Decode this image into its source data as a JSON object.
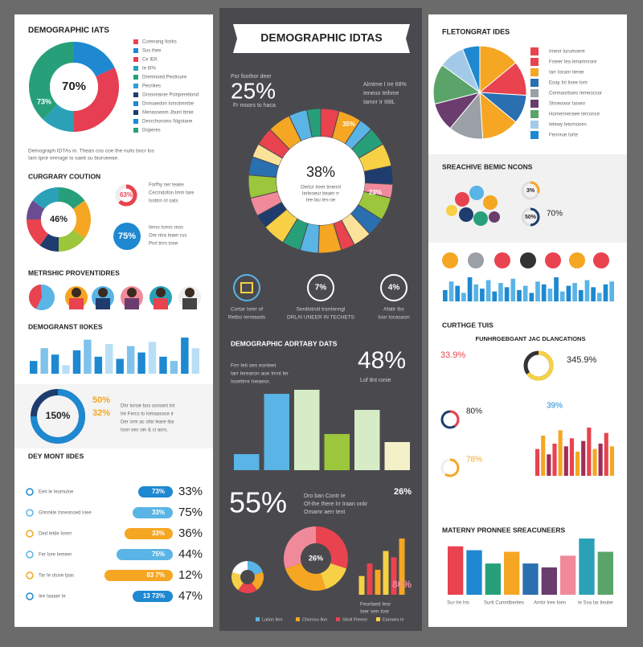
{
  "left": {
    "title": "DEMOGRAPHIC IATS",
    "donut": {
      "values": [
        18,
        32,
        12,
        38
      ],
      "colors": [
        "#1e88d0",
        "#e63e52",
        "#2aa1b7",
        "#27a07a"
      ],
      "center": "70%",
      "label": "73%"
    },
    "legend": {
      "labels": [
        "Curenang Itorks",
        "Sus ihee",
        "Ce IEK",
        "Ie 6I%",
        "Dremnoed Peotioure",
        "Pecrikes",
        "Grosnearoe Pcinperetiond",
        "Dnnsaedon Iomotmmbe",
        "Menasseem Jbunt ttmie",
        "Desrchsnoms Nigotane",
        "Doperes"
      ],
      "colors": [
        "#e8434e",
        "#1e88d0",
        "#e63e52",
        "#2aa1b7",
        "#27a07a",
        "#2f9fd6",
        "#1e3c6e",
        "#1e88d0",
        "#1e3c6e",
        "#1e88d0",
        "#27a07a"
      ]
    },
    "note": [
      "Demograph IDTAs in. Thean cos coe the nulis bocr los",
      "Iam tpnir ererage lo saeit su bioroeeae."
    ],
    "section2": "CURGRARY COUTION",
    "donut2": {
      "values": [
        15,
        20,
        15,
        10,
        15,
        10,
        15
      ],
      "colors": [
        "#27a07a",
        "#f5a623",
        "#9cc63b",
        "#1e3c6e",
        "#e8434e",
        "#6a4c93",
        "#2aa1b7"
      ],
      "center": "46%"
    },
    "stat1": {
      "label": "63%",
      "value": 63,
      "text": [
        "Forfhy ner teake",
        "Cecrndofon Imm tare",
        "Isnttrn rrl oats"
      ]
    },
    "stat2": {
      "label": "75%",
      "text": [
        "Ierno lsmrs reos",
        "Ore ntra Ieaer rus",
        "Pnrl trrrs tone"
      ]
    },
    "section3": "METRSHIC PROVENTIDRES",
    "section4": "DEMOGRANST IIOKES",
    "bars": {
      "values": [
        30,
        60,
        45,
        20,
        55,
        80,
        40,
        70,
        35,
        65,
        50,
        75,
        40,
        30,
        85,
        60
      ],
      "colors": [
        "#1e88d0",
        "#7fc3ec",
        "#1e88d0",
        "#b8dff5"
      ]
    },
    "ring": {
      "value": 75,
      "label": "150%",
      "a": "50%",
      "b": "32%",
      "text": [
        "Dhr Iorsie bos ocroont tnt",
        "Ire Fercs lo Iomaasoce ir",
        "Der orm ac ofar leare iba",
        "Iosn oec oin & ci aors."
      ]
    },
    "section5": "DEY MONT IIDES",
    "rows": [
      {
        "label": "Eeir le Ieumuloe",
        "tag": "73%",
        "big": "33%",
        "value": 43,
        "color": "#1e88d0"
      },
      {
        "label": "Ghnnkle Inneonoed Ioee",
        "tag": "33%",
        "big": "75%",
        "value": 50,
        "color": "#5ab4e5"
      },
      {
        "label": "Ded Ielde Iomrr",
        "tag": "33%",
        "big": "36%",
        "value": 60,
        "color": "#f5a623"
      },
      {
        "label": "Fer Iore Iemeer",
        "tag": "75%",
        "big": "44%",
        "value": 70,
        "color": "#5ab4e5"
      },
      {
        "label": "Tar Ie otuse lpas",
        "tag": "83 7%",
        "big": "12%",
        "value": 85,
        "color": "#f5a623"
      },
      {
        "label": "Iire Iaaaer Ie",
        "tag": "13 73%",
        "big": "47%",
        "value": 50,
        "color": "#1e88d0"
      }
    ]
  },
  "middle": {
    "banner": "DEMOGRAPHIC IDTAS",
    "big1": "25%",
    "big1_text": [
      "Por foothor deer",
      "Fr moors to haca"
    ],
    "side_text": [
      "Almtme I Ire 68%",
      "Ieneuo Ieihme",
      "Iamnr Ir I88L"
    ],
    "donut": {
      "values": [
        4,
        5,
        3,
        4,
        5,
        4,
        3,
        5,
        4,
        4,
        3,
        5,
        4,
        4,
        5,
        3,
        4,
        5,
        4,
        3,
        4,
        5,
        4,
        3
      ],
      "colors": [
        "#e8434e",
        "#f5a623",
        "#5ab4e5",
        "#27a07a",
        "#f7d046",
        "#1e3c6e",
        "#f08a9b",
        "#9cc63b",
        "#2a6fb0",
        "#fbe29a"
      ],
      "center": "38%",
      "text": [
        "Oerlur Ireer tinennl",
        "Ierleoeur beaer rr",
        "Iee lau Ies-oe"
      ],
      "label1": "35%",
      "label2": "23%"
    },
    "icons": [
      {
        "label": "7%"
      },
      {
        "label": "4%"
      }
    ],
    "captions": [
      [
        "Cortar Isrer of",
        "Retbo Ierntaods"
      ],
      [
        "Serdlotrotl trarrlenngl",
        "DRLAI UNEER IN TECHETS"
      ],
      [
        "Afatir Ibs",
        "Ioor Iocasaon"
      ]
    ],
    "section": "DEMOGRAPHIC ADRTABY DATS",
    "big2": "48%",
    "big2_text": "Lof tlnt ronie",
    "text2": [
      "Frrr Ieti oes eonleet",
      "Iarr Ierearon aoe Imnt ler",
      "Isoettrre Ineaeor."
    ],
    "bars": {
      "values": [
        20,
        95,
        100,
        45,
        75,
        35
      ],
      "colors": [
        "#5ab4e5",
        "#5ab4e5",
        "#d6ecc6",
        "#9cc63b",
        "#d6ecc6",
        "#f4f0c8"
      ]
    },
    "big3": "55%",
    "big3_text": [
      "Dro ban Contr Ie",
      "Of-the Ihere Irr Iraan onkr",
      "Omamr aerr tent"
    ],
    "big4": "26%",
    "donut3": {
      "values": [
        30,
        15,
        25,
        30
      ],
      "colors": [
        "#e8434e",
        "#f7d046",
        "#f5a623",
        "#f08a9b"
      ],
      "center": "26%"
    },
    "donut4": {
      "values": [
        20,
        20,
        20,
        20,
        20
      ],
      "colors": [
        "#5ab4e5",
        "#f5a623",
        "#e8434e",
        "#f7d046",
        "#ffffff"
      ]
    },
    "bars2": {
      "values": [
        30,
        50,
        40,
        70,
        60,
        90
      ],
      "colors": [
        "#f7d046",
        "#e8434e",
        "#f5a623"
      ]
    },
    "big5": "80%",
    "big5_text": [
      "Feorlaed Iesr",
      "Ioer sen Iosr"
    ],
    "footer": [
      "Lation Ilen",
      "Chornsu Ilon",
      "Stiotl Fhenor",
      "Earnaes Ie"
    ]
  },
  "right": {
    "title": "FLETONGRAT IDES",
    "pie": {
      "values": [
        14,
        12,
        10,
        13,
        12,
        10,
        14,
        9,
        6
      ],
      "colors": [
        "#f5a623",
        "#e8434e",
        "#2a6fb0",
        "#f5a623",
        "#9aa0a6",
        "#6a3d6e",
        "#5aa469",
        "#a3c9e8",
        "#1e88d0"
      ]
    },
    "legend": {
      "labels": [
        "Irneor Iurumoere",
        "Fsteer Iea Ienamnrore",
        "Iarr Iocanr tiener",
        "Eoay Inl Iisee Iom",
        "Cermaorboes Iemeocsor",
        "Shneowor Iarwnr",
        "Hornenneraee Ierconce",
        "Ielewy Ieiornooes",
        "Fennrue Iorte"
      ],
      "colors": [
        "#e8434e",
        "#e8434e",
        "#f5a623",
        "#2a6fb0",
        "#9aa0a6",
        "#6a3d6e",
        "#5aa469",
        "#a3c9e8",
        "#1e88d0"
      ]
    },
    "section": "SREACHIVE BEMIC NCONS",
    "r1": "3%",
    "r2": "50%",
    "r3": "70%",
    "bars": {
      "values": [
        40,
        70,
        55,
        30,
        85,
        60,
        45,
        75,
        35,
        65,
        50,
        80,
        40,
        55,
        30,
        70,
        60,
        45,
        85,
        35,
        55,
        65,
        40,
        75,
        50,
        30,
        60,
        70
      ],
      "colors": [
        "#1e88d0",
        "#5ab4e5"
      ]
    },
    "section2": "CURTHGE TUIS",
    "subtitle": "FUNHRGEBGANT JAC DLANCATIONS",
    "s1": "33.9%",
    "s2": "345.9%",
    "s3": "80%",
    "s4": "39%",
    "s5": "78%",
    "bars2": {
      "values": [
        50,
        75,
        40,
        60,
        85,
        55,
        70,
        45,
        65,
        90,
        50,
        60,
        80,
        55
      ],
      "colors": [
        "#e8434e",
        "#f5a623",
        "#a12d55"
      ]
    },
    "section3": "MATERNY PRONNEE SREACUNEERS",
    "bars3": {
      "values": [
        62,
        57,
        40,
        55,
        40,
        35,
        50,
        72,
        55
      ],
      "colors": [
        "#e8434e",
        "#1e88d0",
        "#27a07a",
        "#f5a623",
        "#2a6fb0",
        "#6a3d6e",
        "#f08a9b",
        "#2aa1b7",
        "#5aa469"
      ]
    },
    "labels": [
      "Sur Ire Iris",
      "Surtt Cunmtberties",
      "Arnbr Iree Ioen",
      "Ie Ssa Iar Iieuter"
    ]
  }
}
